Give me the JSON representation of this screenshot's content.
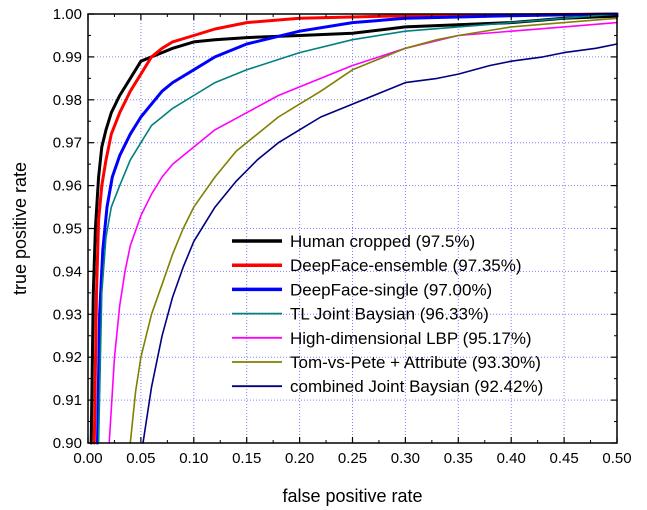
{
  "chart_data": {
    "type": "line",
    "title": "",
    "xlabel": "false positive rate",
    "ylabel": "true positive rate",
    "xlim": [
      0.0,
      0.5
    ],
    "ylim": [
      0.9,
      1.0
    ],
    "x_ticks": [
      "0.00",
      "0.05",
      "0.10",
      "0.15",
      "0.20",
      "0.25",
      "0.30",
      "0.35",
      "0.40",
      "0.45",
      "0.50"
    ],
    "y_ticks": [
      "0.90",
      "0.91",
      "0.92",
      "0.93",
      "0.94",
      "0.95",
      "0.96",
      "0.97",
      "0.98",
      "0.99",
      "1.00"
    ],
    "grid": true,
    "legend_position": "bottom-right",
    "series": [
      {
        "name": "Human cropped (97.5%)",
        "color": "#000000",
        "x": [
          0.003,
          0.005,
          0.007,
          0.01,
          0.013,
          0.017,
          0.022,
          0.03,
          0.04,
          0.05,
          0.06,
          0.07,
          0.08,
          0.1,
          0.12,
          0.15,
          0.2,
          0.25,
          0.3,
          0.35,
          0.4,
          0.45,
          0.5
        ],
        "y": [
          0.9,
          0.935,
          0.95,
          0.962,
          0.969,
          0.973,
          0.977,
          0.981,
          0.985,
          0.989,
          0.99,
          0.991,
          0.992,
          0.9935,
          0.994,
          0.9945,
          0.995,
          0.9955,
          0.997,
          0.9975,
          0.998,
          0.999,
          0.9995
        ]
      },
      {
        "name": "DeepFace-ensemble (97.35%)",
        "color": "#ff0000",
        "x": [
          0.006,
          0.008,
          0.01,
          0.013,
          0.017,
          0.022,
          0.03,
          0.04,
          0.05,
          0.06,
          0.07,
          0.08,
          0.1,
          0.12,
          0.15,
          0.2,
          0.25,
          0.3,
          0.4,
          0.5
        ],
        "y": [
          0.9,
          0.935,
          0.952,
          0.96,
          0.966,
          0.972,
          0.977,
          0.982,
          0.986,
          0.99,
          0.992,
          0.9935,
          0.995,
          0.9965,
          0.998,
          0.999,
          0.9993,
          0.9996,
          0.9998,
          1.0
        ]
      },
      {
        "name": "DeepFace-single (97.00%)",
        "color": "#0000ff",
        "x": [
          0.009,
          0.011,
          0.014,
          0.018,
          0.023,
          0.03,
          0.04,
          0.05,
          0.06,
          0.07,
          0.08,
          0.1,
          0.12,
          0.15,
          0.2,
          0.25,
          0.3,
          0.35,
          0.4,
          0.5
        ],
        "y": [
          0.9,
          0.93,
          0.945,
          0.955,
          0.962,
          0.967,
          0.972,
          0.976,
          0.979,
          0.982,
          0.984,
          0.987,
          0.99,
          0.993,
          0.996,
          0.998,
          0.999,
          0.9993,
          0.9996,
          1.0
        ]
      },
      {
        "name": "TL Joint Baysian (96.33%)",
        "color": "#008080",
        "x": [
          0.01,
          0.013,
          0.017,
          0.022,
          0.03,
          0.04,
          0.05,
          0.06,
          0.07,
          0.08,
          0.1,
          0.12,
          0.15,
          0.2,
          0.25,
          0.3,
          0.35,
          0.4,
          0.45,
          0.5
        ],
        "y": [
          0.9,
          0.935,
          0.948,
          0.955,
          0.96,
          0.966,
          0.97,
          0.974,
          0.976,
          0.978,
          0.981,
          0.984,
          0.987,
          0.991,
          0.994,
          0.996,
          0.997,
          0.998,
          0.999,
          1.0
        ]
      },
      {
        "name": "High-dimensional LBP (95.17%)",
        "color": "#ff00ff",
        "x": [
          0.02,
          0.025,
          0.03,
          0.035,
          0.04,
          0.05,
          0.06,
          0.07,
          0.08,
          0.1,
          0.12,
          0.15,
          0.18,
          0.2,
          0.25,
          0.3,
          0.35,
          0.4,
          0.45,
          0.5
        ],
        "y": [
          0.9,
          0.92,
          0.932,
          0.94,
          0.946,
          0.953,
          0.958,
          0.962,
          0.965,
          0.969,
          0.973,
          0.977,
          0.981,
          0.983,
          0.988,
          0.992,
          0.995,
          0.996,
          0.997,
          0.998
        ]
      },
      {
        "name": "Tom-vs-Pete + Attribute (93.30%)",
        "color": "#808000",
        "x": [
          0.04,
          0.045,
          0.05,
          0.06,
          0.07,
          0.08,
          0.09,
          0.1,
          0.12,
          0.14,
          0.16,
          0.18,
          0.2,
          0.22,
          0.25,
          0.28,
          0.3,
          0.33,
          0.35,
          0.4,
          0.45,
          0.5
        ],
        "y": [
          0.9,
          0.912,
          0.92,
          0.93,
          0.937,
          0.944,
          0.95,
          0.955,
          0.962,
          0.968,
          0.972,
          0.976,
          0.979,
          0.982,
          0.987,
          0.99,
          0.992,
          0.994,
          0.995,
          0.997,
          0.998,
          0.999
        ]
      },
      {
        "name": "combined Joint Baysian (92.42%)",
        "color": "#000080",
        "x": [
          0.052,
          0.06,
          0.07,
          0.08,
          0.09,
          0.1,
          0.12,
          0.14,
          0.16,
          0.18,
          0.2,
          0.22,
          0.25,
          0.28,
          0.3,
          0.33,
          0.35,
          0.38,
          0.4,
          0.43,
          0.45,
          0.48,
          0.5
        ],
        "y": [
          0.9,
          0.913,
          0.925,
          0.934,
          0.941,
          0.947,
          0.955,
          0.961,
          0.966,
          0.97,
          0.973,
          0.976,
          0.979,
          0.982,
          0.984,
          0.985,
          0.986,
          0.988,
          0.989,
          0.99,
          0.991,
          0.992,
          0.993
        ]
      }
    ]
  }
}
